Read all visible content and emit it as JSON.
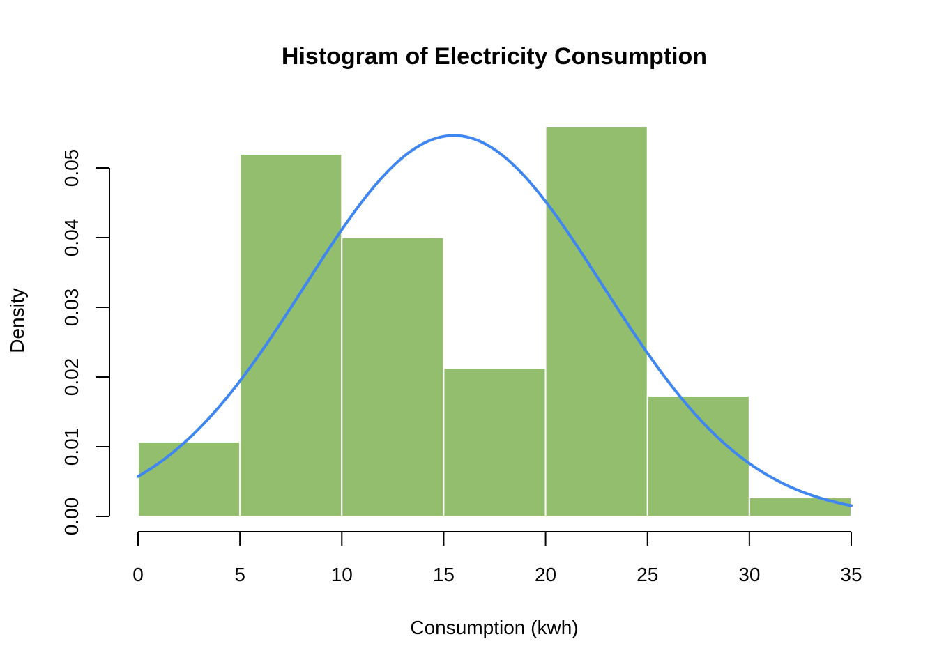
{
  "chart_data": {
    "type": "bar",
    "title": "Histogram of Electricity Consumption",
    "xlabel": "Consumption (kwh)",
    "ylabel": "Density",
    "xlim": [
      0,
      35
    ],
    "ylim": [
      0,
      0.055
    ],
    "x_ticks": [
      0,
      5,
      10,
      15,
      20,
      25,
      30,
      35
    ],
    "x_tick_labels": [
      "0",
      "5",
      "10",
      "15",
      "20",
      "25",
      "30",
      "35"
    ],
    "y_ticks": [
      0,
      0.01,
      0.02,
      0.03,
      0.04,
      0.05
    ],
    "y_tick_labels": [
      "0.00",
      "0.01",
      "0.02",
      "0.03",
      "0.04",
      "0.05"
    ],
    "bins": [
      {
        "start": 0,
        "end": 5,
        "density": 0.0107
      },
      {
        "start": 5,
        "end": 10,
        "density": 0.052
      },
      {
        "start": 10,
        "end": 15,
        "density": 0.04
      },
      {
        "start": 15,
        "end": 20,
        "density": 0.0213
      },
      {
        "start": 20,
        "end": 25,
        "density": 0.056
      },
      {
        "start": 25,
        "end": 30,
        "density": 0.0173
      },
      {
        "start": 30,
        "end": 35,
        "density": 0.0027
      }
    ],
    "curve": {
      "type": "normal-density",
      "mean": 15.5,
      "sd": 7.3
    },
    "grid": false,
    "legend": "none",
    "colors": {
      "bar_fill": "#92BE6E",
      "bar_border": "#ffffff",
      "curve": "#3F86F0",
      "axis": "#000000"
    }
  }
}
